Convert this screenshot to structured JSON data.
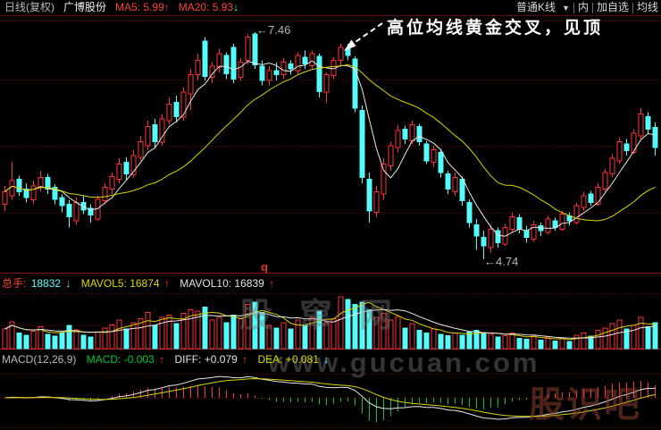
{
  "topbar": {
    "period_label": "日线(复权)",
    "stock_name": "广博股份",
    "ma5_label": "MA5: 5.99",
    "ma5_arrow": "↑",
    "ma20_label": "MA20: 5.93",
    "ma20_arrow": "↓",
    "kline_type": "普通K线",
    "dropdown_arrow": "▼",
    "btn_inner": "内",
    "btn_add_watchlist": "加自选",
    "btn_ma": "均线"
  },
  "annotations": {
    "peak_label": "←7.46",
    "low_label": "←4.74",
    "golden_cross_note": "高位均线黄金交叉，见顶",
    "event_marker": "q"
  },
  "volume_pane": {
    "vol_label": "总手:",
    "vol_value": "18832",
    "vol_arrow": "↓",
    "mavol5_label": "MAVOL5: 16874",
    "mavol5_arrow": "↑",
    "mavol10_label": "MAVOL10: 16839",
    "mavol10_arrow": "↑"
  },
  "macd_pane": {
    "indicator_label": "MACD(12,26,9)",
    "macd_label": "MACD: -0.003",
    "macd_arrow": "↑",
    "diff_label": "DIFF: +0.079",
    "diff_arrow": "↑",
    "dea_label": "DEA: +0.081",
    "dea_arrow": "↓"
  },
  "watermarks": {
    "center": "股窜网",
    "url": "www.gucuan.com",
    "corner": "股识吧"
  },
  "colors": {
    "up": "#ff3434",
    "down": "#54fcfc",
    "ma5_line": "#e8e8e8",
    "ma20_line": "#d6d600",
    "mavol5_line": "#d6d600",
    "mavol10_line": "#e8e8e8",
    "diff_line": "#e8e8e8",
    "dea_line": "#d6d600",
    "hist_pos": "#ff3434",
    "hist_neg": "#00c832",
    "grid": "#6e0000",
    "divider": "#8a1515",
    "background": "#000000"
  },
  "chart_data": {
    "type": "candlestick",
    "title": "广博股份 日线(复权)",
    "legend": [
      "MA5",
      "MA20",
      "MAVOL5",
      "MAVOL10",
      "MACD(12,26,9)"
    ],
    "ylim_main": [
      4.58,
      7.66
    ],
    "peak_price": 7.46,
    "low_price": 4.74,
    "grid": true,
    "candles": [
      [
        5.4,
        5.62,
        5.32,
        5.55
      ],
      [
        5.5,
        5.9,
        5.45,
        5.68
      ],
      [
        5.7,
        5.74,
        5.5,
        5.55
      ],
      [
        5.58,
        5.65,
        5.42,
        5.48
      ],
      [
        5.45,
        5.68,
        5.4,
        5.62
      ],
      [
        5.6,
        5.8,
        5.55,
        5.72
      ],
      [
        5.72,
        5.76,
        5.52,
        5.58
      ],
      [
        5.6,
        5.64,
        5.4,
        5.46
      ],
      [
        5.48,
        5.52,
        5.3,
        5.38
      ],
      [
        5.4,
        5.45,
        5.12,
        5.25
      ],
      [
        5.2,
        5.48,
        5.15,
        5.42
      ],
      [
        5.42,
        5.5,
        5.28,
        5.33
      ],
      [
        5.35,
        5.4,
        5.18,
        5.27
      ],
      [
        5.22,
        5.5,
        5.2,
        5.46
      ],
      [
        5.44,
        5.65,
        5.4,
        5.6
      ],
      [
        5.58,
        5.78,
        5.52,
        5.73
      ],
      [
        5.7,
        5.95,
        5.65,
        5.88
      ],
      [
        5.9,
        5.96,
        5.68,
        5.76
      ],
      [
        5.75,
        6.05,
        5.72,
        5.98
      ],
      [
        5.96,
        6.22,
        5.92,
        6.15
      ],
      [
        6.1,
        6.4,
        6.05,
        6.33
      ],
      [
        6.35,
        6.42,
        6.08,
        6.15
      ],
      [
        6.14,
        6.48,
        6.1,
        6.42
      ],
      [
        6.4,
        6.68,
        6.35,
        6.6
      ],
      [
        6.62,
        6.7,
        6.38,
        6.45
      ],
      [
        6.44,
        6.8,
        6.4,
        6.74
      ],
      [
        6.72,
        7.02,
        6.52,
        6.95
      ],
      [
        6.95,
        7.2,
        6.88,
        7.12
      ],
      [
        7.35,
        7.4,
        6.88,
        6.93
      ],
      [
        6.92,
        7.1,
        6.85,
        7.05
      ],
      [
        7.04,
        7.26,
        6.98,
        7.2
      ],
      [
        7.18,
        7.22,
        6.9,
        6.96
      ],
      [
        7.28,
        7.32,
        6.85,
        6.9
      ],
      [
        6.92,
        7.15,
        6.88,
        7.1
      ],
      [
        7.12,
        7.44,
        7.08,
        7.4
      ],
      [
        7.44,
        7.46,
        7.02,
        7.07
      ],
      [
        7.05,
        7.12,
        6.82,
        6.88
      ],
      [
        6.88,
        7.05,
        6.82,
        7.0
      ],
      [
        7.0,
        7.1,
        6.88,
        6.95
      ],
      [
        6.95,
        7.15,
        6.9,
        7.1
      ],
      [
        7.08,
        7.12,
        6.95,
        7.02
      ],
      [
        7.0,
        7.22,
        6.96,
        7.18
      ],
      [
        7.16,
        7.24,
        7.02,
        7.08
      ],
      [
        7.06,
        7.24,
        7.02,
        7.2
      ],
      [
        7.17,
        7.2,
        6.68,
        6.75
      ],
      [
        6.74,
        6.98,
        6.62,
        6.95
      ],
      [
        6.94,
        7.16,
        6.9,
        7.12
      ],
      [
        7.12,
        7.32,
        7.06,
        7.28
      ],
      [
        7.26,
        7.32,
        7.12,
        7.18
      ],
      [
        7.14,
        7.17,
        6.5,
        6.55
      ],
      [
        6.52,
        6.58,
        5.65,
        5.72
      ],
      [
        5.7,
        5.78,
        5.18,
        5.32
      ],
      [
        5.3,
        5.62,
        5.25,
        5.55
      ],
      [
        5.52,
        5.95,
        5.45,
        5.88
      ],
      [
        5.86,
        6.15,
        5.8,
        6.1
      ],
      [
        6.08,
        6.35,
        6.02,
        6.28
      ],
      [
        6.3,
        6.34,
        6.12,
        6.18
      ],
      [
        6.16,
        6.4,
        6.12,
        6.35
      ],
      [
        6.33,
        6.36,
        6.1,
        6.15
      ],
      [
        6.12,
        6.16,
        5.88,
        5.92
      ],
      [
        5.9,
        6.1,
        5.85,
        6.05
      ],
      [
        6.02,
        6.06,
        5.72,
        5.78
      ],
      [
        5.76,
        5.8,
        5.52,
        5.58
      ],
      [
        5.55,
        5.78,
        5.5,
        5.72
      ],
      [
        5.7,
        5.73,
        5.38,
        5.44
      ],
      [
        5.42,
        5.46,
        5.12,
        5.18
      ],
      [
        5.15,
        5.22,
        4.85,
        5.02
      ],
      [
        5.0,
        5.08,
        4.74,
        4.9
      ],
      [
        4.88,
        5.15,
        4.82,
        5.1
      ],
      [
        5.08,
        5.12,
        4.88,
        4.94
      ],
      [
        4.92,
        5.16,
        4.9,
        5.12
      ],
      [
        5.1,
        5.3,
        5.06,
        5.25
      ],
      [
        5.24,
        5.28,
        5.05,
        5.1
      ],
      [
        5.08,
        5.14,
        4.94,
        5.0
      ],
      [
        4.98,
        5.2,
        4.95,
        5.15
      ],
      [
        5.14,
        5.18,
        5.02,
        5.08
      ],
      [
        5.06,
        5.26,
        5.04,
        5.22
      ],
      [
        5.2,
        5.24,
        5.08,
        5.12
      ],
      [
        5.1,
        5.32,
        5.08,
        5.28
      ],
      [
        5.26,
        5.3,
        5.14,
        5.2
      ],
      [
        5.18,
        5.42,
        5.16,
        5.38
      ],
      [
        5.36,
        5.55,
        5.32,
        5.5
      ],
      [
        5.52,
        5.56,
        5.38,
        5.42
      ],
      [
        5.4,
        5.65,
        5.38,
        5.6
      ],
      [
        5.58,
        5.82,
        5.55,
        5.78
      ],
      [
        5.76,
        6.0,
        5.72,
        5.95
      ],
      [
        5.92,
        6.2,
        5.88,
        6.15
      ],
      [
        6.12,
        6.18,
        5.98,
        6.04
      ],
      [
        6.02,
        6.3,
        6.0,
        6.25
      ],
      [
        6.22,
        6.55,
        6.18,
        6.48
      ],
      [
        6.45,
        6.5,
        6.25,
        6.3
      ],
      [
        6.32,
        6.38,
        5.98,
        6.08
      ]
    ],
    "volumes_rel": [
      38,
      52,
      30,
      26,
      34,
      42,
      28,
      24,
      30,
      45,
      36,
      26,
      22,
      32,
      40,
      46,
      55,
      38,
      50,
      58,
      70,
      45,
      60,
      65,
      48,
      68,
      75,
      72,
      80,
      55,
      60,
      50,
      65,
      58,
      85,
      90,
      70,
      45,
      40,
      50,
      38,
      55,
      45,
      60,
      72,
      50,
      58,
      100,
      95,
      85,
      90,
      75,
      60,
      68,
      55,
      62,
      40,
      48,
      35,
      30,
      38,
      28,
      25,
      30,
      26,
      32,
      35,
      30,
      28,
      22,
      25,
      30,
      20,
      18,
      24,
      16,
      22,
      15,
      20,
      14,
      26,
      30,
      24,
      35,
      40,
      48,
      55,
      38,
      45,
      60,
      42,
      50
    ]
  }
}
